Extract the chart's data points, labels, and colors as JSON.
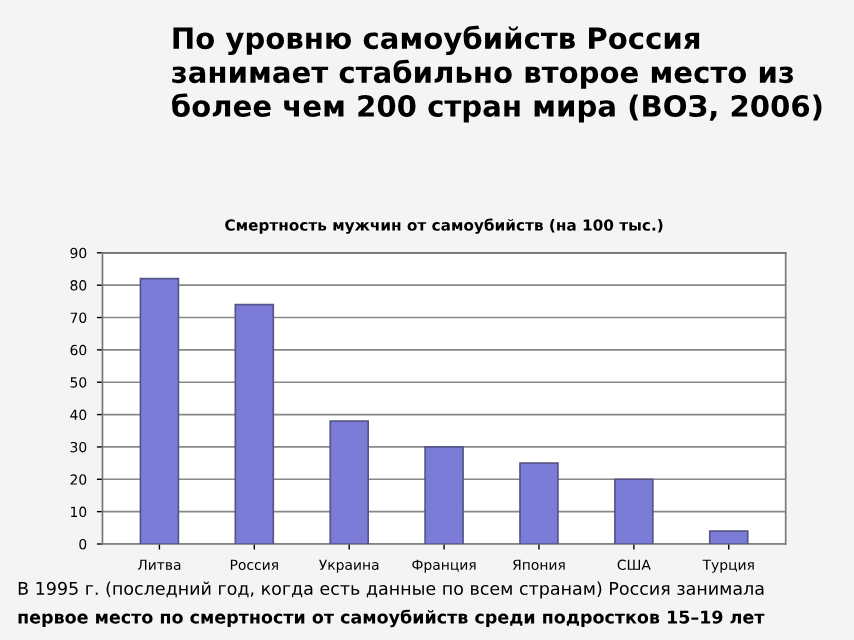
{
  "chart_data": {
    "type": "bar",
    "title": "По уровню самоубийств Россия занимает стабильно второе место из более чем 200 стран мира (ВОЗ, 2006)",
    "subtitle": "Смертность мужчин от самоубийств (на 100 тыс.)",
    "categories": [
      "Литва",
      "Россия",
      "Украина",
      "Франция",
      "Япония",
      "США",
      "Турция"
    ],
    "values": [
      82,
      74,
      38,
      30,
      25,
      20,
      4
    ],
    "color": "#7b7bd8",
    "ylim": [
      0,
      90
    ],
    "yticks": [
      0,
      10,
      20,
      30,
      40,
      50,
      60,
      70,
      80,
      90
    ],
    "grid": "y",
    "annotations": [
      "В 1995 г. (последний год, когда есть данные по всем странам) Россия занимала",
      "первое место по смертности от самоубийств среди подростков 15–19 лет"
    ]
  }
}
